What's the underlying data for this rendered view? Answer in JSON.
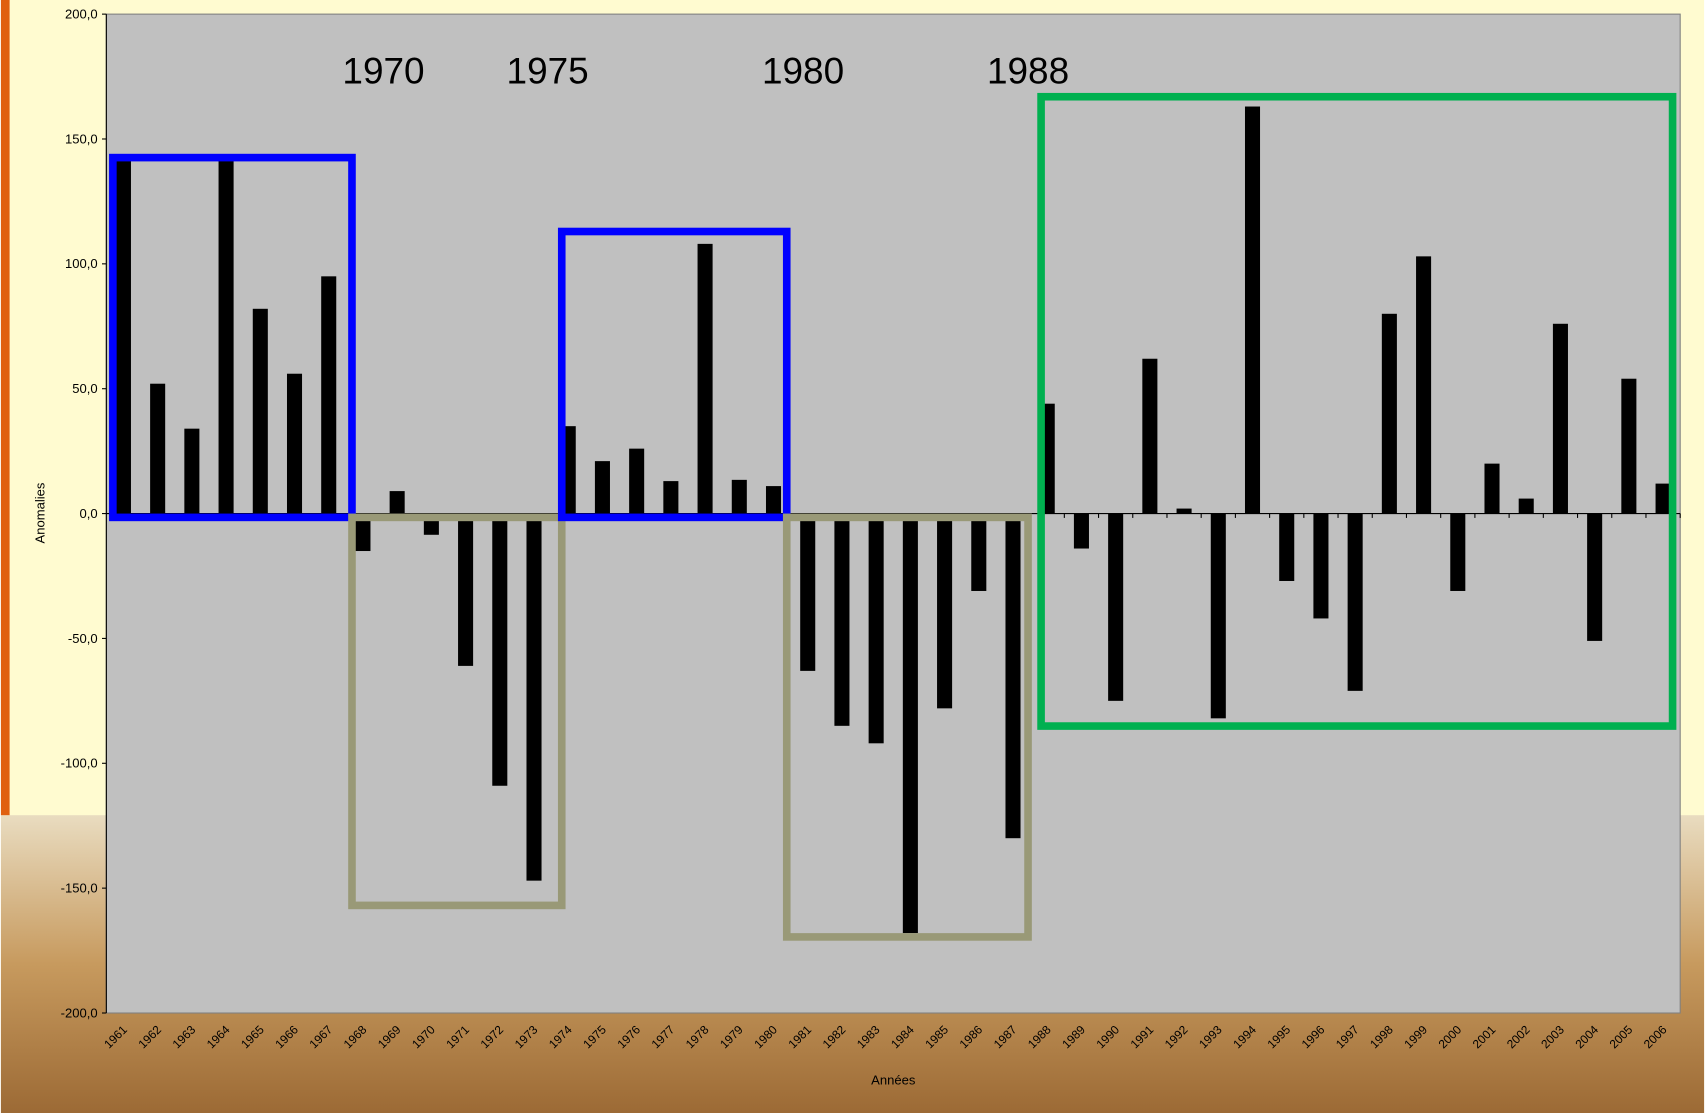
{
  "chart_data": {
    "type": "bar",
    "categories": [
      "1961",
      "1962",
      "1963",
      "1964",
      "1965",
      "1966",
      "1967",
      "1968",
      "1969",
      "1970",
      "1971",
      "1972",
      "1973",
      "1974",
      "1975",
      "1976",
      "1977",
      "1978",
      "1979",
      "1980",
      "1981",
      "1982",
      "1983",
      "1984",
      "1985",
      "1986",
      "1987",
      "1988",
      "1989",
      "1990",
      "1991",
      "1992",
      "1993",
      "1994",
      "1995",
      "1996",
      "1997",
      "1998",
      "1999",
      "2000",
      "2001",
      "2002",
      "2003",
      "2004",
      "2005",
      "2006"
    ],
    "values": [
      142,
      52,
      34,
      142,
      82,
      56,
      95,
      -15,
      9,
      -8.5,
      -61,
      -109,
      -147,
      35,
      21,
      26,
      13,
      108,
      13.5,
      11,
      -63,
      -85,
      -92,
      -168,
      -78,
      -31,
      -130,
      44,
      -14,
      -75,
      62,
      2,
      -82,
      163,
      -27,
      -42,
      -71,
      80,
      103,
      -31,
      20,
      6,
      76,
      -51,
      54,
      12
    ],
    "color": "#000000",
    "ylim": [
      -200,
      200
    ],
    "yticks": [
      {
        "value": -200,
        "label": "-200,0"
      },
      {
        "value": -150,
        "label": "-150,0"
      },
      {
        "value": -100,
        "label": "-100,0"
      },
      {
        "value": -50,
        "label": "-50,0"
      },
      {
        "value": 0,
        "label": "0,0"
      },
      {
        "value": 50,
        "label": "50,0"
      },
      {
        "value": 100,
        "label": "100,0"
      },
      {
        "value": 150,
        "label": "150,0"
      },
      {
        "value": 200,
        "label": "200,0"
      }
    ],
    "ylabel": "Anomalies",
    "xlabel": "Années",
    "annotations": [
      "1970",
      "1975",
      "1980",
      "1988"
    ]
  }
}
